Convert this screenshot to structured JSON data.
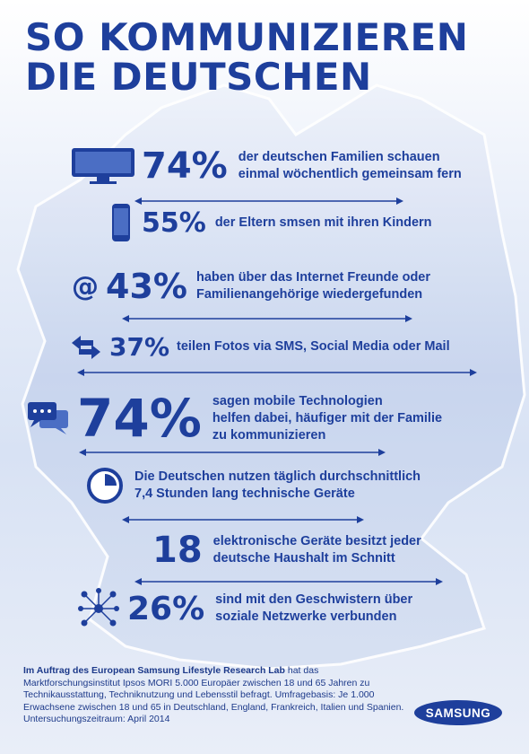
{
  "title_line1": "SO KOMMUNIZIEREN",
  "title_line2": "DIE DEUTSCHEN",
  "stats": [
    {
      "value": "74%",
      "text": [
        "der deutschen Familien schauen",
        "einmal wöchentlich gemeinsam fern"
      ],
      "icon": "tv-icon"
    },
    {
      "value": "55%",
      "text": [
        "der Eltern smsen mit ihren Kindern"
      ],
      "icon": "smartphone-icon"
    },
    {
      "value": "43%",
      "text": [
        "haben über das Internet Freunde oder",
        "Familienangehörige wiedergefunden"
      ],
      "icon": "at-sign-icon"
    },
    {
      "value": "37%",
      "text": [
        "teilen Fotos via SMS, Social Media oder Mail"
      ],
      "icon": "exchange-arrows-icon"
    },
    {
      "value": "74%",
      "text": [
        "sagen mobile Technologien",
        "helfen dabei, häufiger mit der Familie",
        "zu kommunizieren"
      ],
      "icon": "chat-bubbles-icon"
    },
    {
      "value": "",
      "text": [
        "Die Deutschen nutzen täglich durchschnittlich",
        "7,4 Stunden lang technische Geräte"
      ],
      "icon": "clock-icon"
    },
    {
      "value": "18",
      "text": [
        "elektronische Geräte besitzt jeder",
        "deutsche Haushalt im Schnitt"
      ],
      "icon": ""
    },
    {
      "value": "26%",
      "text": [
        "sind mit den Geschwistern über",
        "soziale Netzwerke verbunden"
      ],
      "icon": "network-people-icon"
    }
  ],
  "footer": {
    "bold": "Im Auftrag des European Samsung Lifestyle Research Lab",
    "rest": " hat das Marktforschungsinstitut Ipsos MORI 5.000 Europäer zwischen 18 und 65 Jahren zu Technikausstattung, Techniknutzung und Lebensstil befragt. Umfragebasis: Je 1.000 Erwachsene zwischen 18 und 65 in Deutschland, England, Frankreich, Italien und Spanien. Untersuchungszeitraum: April 2014"
  },
  "logo": "SAMSUNG",
  "colors": {
    "primary": "#1e3f9c",
    "map": "#c9d6ee"
  }
}
